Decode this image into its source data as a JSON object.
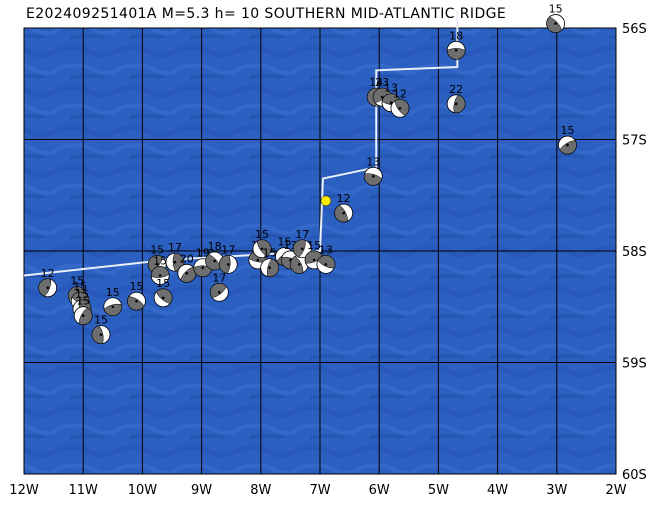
{
  "header": {
    "title": "E202409251401A  M=5.3  h= 10  SOUTHERN MID-ATLANTIC RIDGE"
  },
  "map": {
    "lon_range": [
      -12,
      -2
    ],
    "lat_range": [
      -60,
      -56
    ],
    "lon_labels": [
      "12W",
      "11W",
      "10W",
      "9W",
      "8W",
      "7W",
      "6W",
      "5W",
      "4W",
      "3W",
      "2W"
    ],
    "lat_labels": [
      "56S",
      "57S",
      "58S",
      "59S",
      "60S"
    ],
    "colors": {
      "ocean": "#2b5fc0",
      "ocean_dark": "#1f4fae",
      "grid": "#000000",
      "ridge": "#e8eef8",
      "epicenter": "#ffee00"
    },
    "epicenter": {
      "lon": -6.9,
      "lat": -57.55
    },
    "ridge_path": [
      [
        -12.0,
        -58.22
      ],
      [
        -9.6,
        -58.08
      ],
      [
        -8.6,
        -58.05
      ],
      [
        -7.0,
        -58.0
      ],
      [
        -6.95,
        -57.35
      ],
      [
        -6.05,
        -57.25
      ],
      [
        -6.05,
        -56.38
      ],
      [
        -4.68,
        -56.35
      ],
      [
        -4.68,
        -55.85
      ]
    ],
    "events": [
      {
        "lon": -4.7,
        "lat": -56.2,
        "depth": "18"
      },
      {
        "lon": -3.02,
        "lat": -55.96,
        "depth": "15"
      },
      {
        "lon": -6.05,
        "lat": -56.62,
        "depth": "14"
      },
      {
        "lon": -5.95,
        "lat": -56.62,
        "depth": "23"
      },
      {
        "lon": -5.8,
        "lat": -56.67,
        "depth": "13"
      },
      {
        "lon": -5.65,
        "lat": -56.72,
        "depth": "12"
      },
      {
        "lon": -4.7,
        "lat": -56.68,
        "depth": "22"
      },
      {
        "lon": -2.82,
        "lat": -57.05,
        "depth": "15"
      },
      {
        "lon": -6.1,
        "lat": -57.33,
        "depth": "13"
      },
      {
        "lon": -6.6,
        "lat": -57.66,
        "depth": "12"
      },
      {
        "lon": -11.6,
        "lat": -58.33,
        "depth": "12"
      },
      {
        "lon": -11.1,
        "lat": -58.4,
        "depth": "15"
      },
      {
        "lon": -11.05,
        "lat": -58.45,
        "depth": "15"
      },
      {
        "lon": -11.02,
        "lat": -58.52,
        "depth": "15"
      },
      {
        "lon": -11.0,
        "lat": -58.58,
        "depth": "15"
      },
      {
        "lon": -10.5,
        "lat": -58.5,
        "depth": "15"
      },
      {
        "lon": -10.1,
        "lat": -58.45,
        "depth": "15"
      },
      {
        "lon": -10.7,
        "lat": -58.75,
        "depth": "15"
      },
      {
        "lon": -9.75,
        "lat": -58.12,
        "depth": "15"
      },
      {
        "lon": -9.7,
        "lat": -58.22,
        "depth": "15"
      },
      {
        "lon": -9.65,
        "lat": -58.42,
        "depth": "15"
      },
      {
        "lon": -9.45,
        "lat": -58.1,
        "depth": "17"
      },
      {
        "lon": -9.25,
        "lat": -58.2,
        "depth": "20"
      },
      {
        "lon": -8.98,
        "lat": -58.15,
        "depth": "19"
      },
      {
        "lon": -8.78,
        "lat": -58.09,
        "depth": "18"
      },
      {
        "lon": -8.55,
        "lat": -58.12,
        "depth": "17"
      },
      {
        "lon": -8.7,
        "lat": -58.37,
        "depth": "17"
      },
      {
        "lon": -8.05,
        "lat": -58.08,
        "depth": "15"
      },
      {
        "lon": -7.98,
        "lat": -57.98,
        "depth": "15"
      },
      {
        "lon": -7.85,
        "lat": -58.15,
        "depth": "15"
      },
      {
        "lon": -7.6,
        "lat": -58.05,
        "depth": "15"
      },
      {
        "lon": -7.5,
        "lat": -58.08,
        "depth": "13"
      },
      {
        "lon": -7.35,
        "lat": -58.12,
        "depth": "17"
      },
      {
        "lon": -7.3,
        "lat": -57.98,
        "depth": "17"
      },
      {
        "lon": -7.1,
        "lat": -58.08,
        "depth": "15"
      },
      {
        "lon": -6.9,
        "lat": -58.12,
        "depth": "13"
      }
    ]
  }
}
